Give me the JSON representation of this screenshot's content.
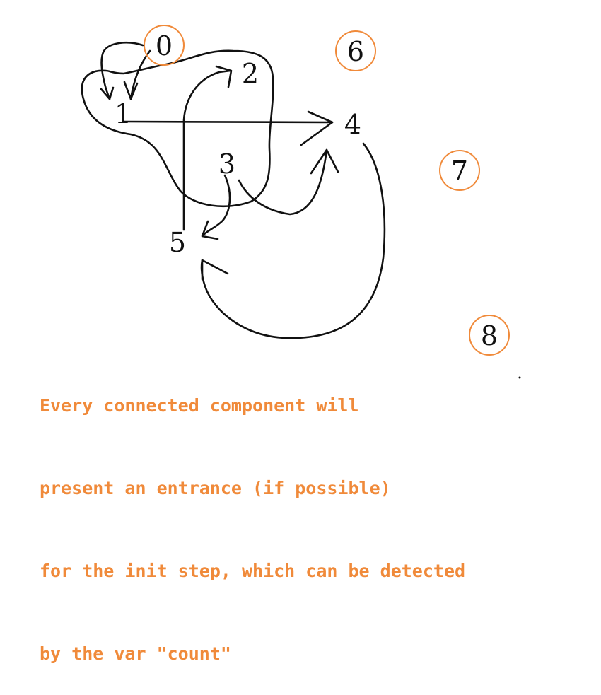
{
  "colors": {
    "ink": "#111111",
    "accent": "#f08a3a",
    "background": "#ffffff"
  },
  "nodes": [
    {
      "id": "0",
      "label": "0",
      "circled": true
    },
    {
      "id": "1",
      "label": "1",
      "circled": false
    },
    {
      "id": "2",
      "label": "2",
      "circled": false
    },
    {
      "id": "3",
      "label": "3",
      "circled": false
    },
    {
      "id": "4",
      "label": "4",
      "circled": false
    },
    {
      "id": "5",
      "label": "5",
      "circled": false
    },
    {
      "id": "6",
      "label": "6",
      "circled": true
    },
    {
      "id": "7",
      "label": "7",
      "circled": true
    },
    {
      "id": "8",
      "label": "8",
      "circled": true
    }
  ],
  "edges": [
    {
      "from": "0",
      "to": "1"
    },
    {
      "from": "1",
      "to": "4"
    },
    {
      "from": "5",
      "to": "2"
    },
    {
      "from": "3",
      "to": "4"
    },
    {
      "from": "3",
      "to": "5"
    },
    {
      "from": "4",
      "to": "5"
    }
  ],
  "caption": {
    "lines": [
      "Every connected component will",
      "present an entrance (if possible)",
      "for the init step, which can be detected",
      "by the var \"count\""
    ]
  }
}
